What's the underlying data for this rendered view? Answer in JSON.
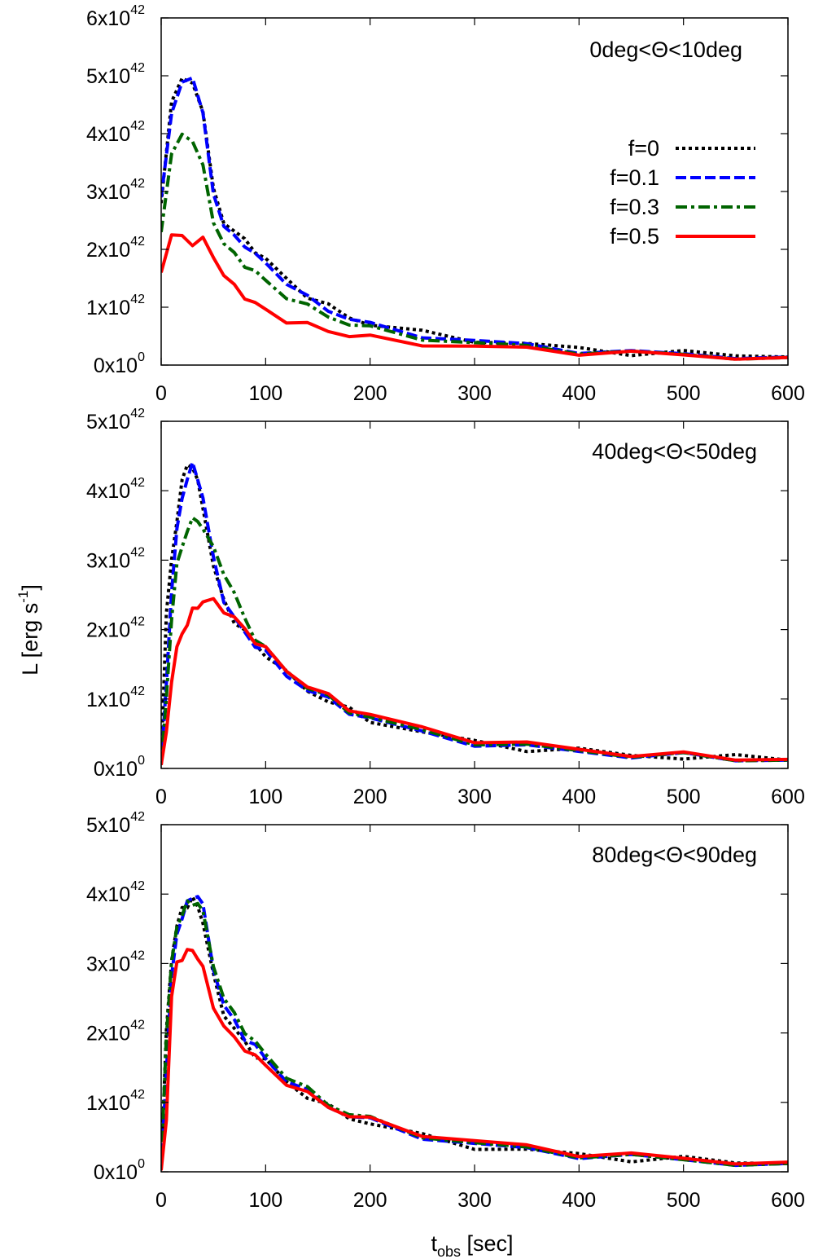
{
  "figure": {
    "ylabel": "L [erg s",
    "ylabel_sup": "-1",
    "ylabel_close": "]",
    "xlabel": "t",
    "xlabel_sub": "obs",
    "xlabel_rest": " [sec]"
  },
  "legend": {
    "entries": [
      {
        "label": "f=0",
        "color": "#000000",
        "style": "dotted"
      },
      {
        "label": "f=0.1",
        "color": "#0000ff",
        "style": "dashed"
      },
      {
        "label": "f=0.3",
        "color": "#006400",
        "style": "dashdot"
      },
      {
        "label": "f=0.5",
        "color": "#ff0000",
        "style": "solid"
      }
    ]
  },
  "chart_data": [
    {
      "type": "line",
      "annotation": "0deg<Θ<10deg",
      "xlim": [
        0,
        600
      ],
      "ylim": [
        0,
        6e+42
      ],
      "xticks": [
        "0",
        "100",
        "200",
        "300",
        "400",
        "500",
        "600"
      ],
      "yticks": [
        {
          "mantissa": "0x10",
          "exp": "0"
        },
        {
          "mantissa": "1x10",
          "exp": "42"
        },
        {
          "mantissa": "2x10",
          "exp": "42"
        },
        {
          "mantissa": "3x10",
          "exp": "42"
        },
        {
          "mantissa": "4x10",
          "exp": "42"
        },
        {
          "mantissa": "5x10",
          "exp": "42"
        },
        {
          "mantissa": "6x10",
          "exp": "42"
        }
      ],
      "series": [
        {
          "name": "f=0",
          "x": [
            0,
            10,
            20,
            30,
            40,
            50,
            60,
            70,
            80,
            90,
            100,
            120,
            140,
            160,
            180,
            200,
            250,
            300,
            350,
            400,
            450,
            500,
            550,
            600
          ],
          "values": [
            2.8e+42,
            4.6e+42,
            4.9e+42,
            4.9e+42,
            4.4e+42,
            3e+42,
            2.5e+42,
            2.3e+42,
            2.15e+42,
            2e+42,
            1.8e+42,
            1.5e+42,
            1.2e+42,
            1e+42,
            8.5e+41,
            7e+41,
            5.5e+41,
            4.5e+41,
            3.5e+41,
            2.8e+41,
            2.2e+41,
            2e+41,
            1.7e+41,
            1.4e+41
          ]
        },
        {
          "name": "f=0.1",
          "x": [
            0,
            10,
            20,
            30,
            40,
            50,
            60,
            70,
            80,
            90,
            100,
            120,
            140,
            160,
            180,
            200,
            250,
            300,
            350,
            400,
            450,
            500,
            550,
            600
          ],
          "values": [
            2.9e+42,
            4.3e+42,
            4.9e+42,
            5e+42,
            4.3e+42,
            3e+42,
            2.4e+42,
            2.2e+42,
            2.1e+42,
            1.9e+42,
            1.75e+42,
            1.45e+42,
            1.15e+42,
            9.5e+41,
            8.2e+41,
            6.8e+41,
            5.2e+41,
            4.2e+41,
            3.3e+41,
            2.6e+41,
            2.1e+41,
            1.9e+41,
            1.6e+41,
            1.4e+41
          ]
        },
        {
          "name": "f=0.3",
          "x": [
            0,
            10,
            20,
            30,
            40,
            50,
            60,
            70,
            80,
            90,
            100,
            120,
            140,
            160,
            180,
            200,
            250,
            300,
            350,
            400,
            450,
            500,
            550,
            600
          ],
          "values": [
            2.3e+42,
            3.6e+42,
            4e+42,
            3.9e+42,
            3.4e+42,
            2.5e+42,
            2.1e+42,
            1.9e+42,
            1.75e+42,
            1.6e+42,
            1.45e+42,
            1.2e+42,
            1e+42,
            8.5e+41,
            7.2e+41,
            6.2e+41,
            4.8e+41,
            3.8e+41,
            3e+41,
            2.5e+41,
            2e+41,
            1.8e+41,
            1.5e+41,
            1.3e+41
          ]
        },
        {
          "name": "f=0.5",
          "x": [
            0,
            10,
            20,
            30,
            40,
            50,
            60,
            70,
            80,
            90,
            100,
            120,
            140,
            160,
            180,
            200,
            250,
            300,
            350,
            400,
            450,
            500,
            550,
            600
          ],
          "values": [
            1.6e+42,
            2.2e+42,
            2.25e+42,
            2.1e+42,
            2.15e+42,
            1.9e+42,
            1.55e+42,
            1.35e+42,
            1.2e+42,
            1.05e+42,
            9.5e+41,
            7.8e+41,
            6.8e+41,
            6e+41,
            5.2e+41,
            4.6e+41,
            3.8e+41,
            3.2e+41,
            2.7e+41,
            2.3e+41,
            2e+41,
            1.7e+41,
            1.5e+41,
            1.3e+41
          ]
        }
      ]
    },
    {
      "type": "line",
      "annotation": "40deg<Θ<50deg",
      "xlim": [
        0,
        600
      ],
      "ylim": [
        0,
        5e+42
      ],
      "xticks": [
        "0",
        "100",
        "200",
        "300",
        "400",
        "500",
        "600"
      ],
      "yticks": [
        {
          "mantissa": "0x10",
          "exp": "0"
        },
        {
          "mantissa": "1x10",
          "exp": "42"
        },
        {
          "mantissa": "2x10",
          "exp": "42"
        },
        {
          "mantissa": "3x10",
          "exp": "42"
        },
        {
          "mantissa": "4x10",
          "exp": "42"
        },
        {
          "mantissa": "5x10",
          "exp": "42"
        }
      ],
      "series": [
        {
          "name": "f=0",
          "x": [
            0,
            5,
            10,
            15,
            20,
            25,
            30,
            35,
            40,
            50,
            60,
            70,
            80,
            90,
            100,
            120,
            140,
            160,
            180,
            200,
            250,
            300,
            350,
            400,
            450,
            500,
            550,
            600
          ],
          "values": [
            1e+41,
            2.2e+42,
            3e+42,
            3.6e+42,
            4.1e+42,
            4.4e+42,
            4.35e+42,
            4.1e+42,
            3.8e+42,
            2.9e+42,
            2.4e+42,
            2.15e+42,
            1.95e+42,
            1.8e+42,
            1.65e+42,
            1.35e+42,
            1.15e+42,
            9.7e+41,
            8.3e+41,
            7.2e+41,
            5e+41,
            3.8e+41,
            3e+41,
            2.4e+41,
            2e+41,
            1.7e+41,
            1.4e+41,
            1.2e+41
          ]
        },
        {
          "name": "f=0.1",
          "x": [
            0,
            5,
            10,
            15,
            20,
            25,
            30,
            35,
            40,
            50,
            60,
            70,
            80,
            90,
            100,
            120,
            140,
            160,
            180,
            200,
            250,
            300,
            350,
            400,
            450,
            500,
            550,
            600
          ],
          "values": [
            5e+40,
            1.2e+42,
            2.6e+42,
            3.4e+42,
            3.9e+42,
            4.2e+42,
            4.35e+42,
            4.2e+42,
            3.9e+42,
            3e+42,
            2.45e+42,
            2.15e+42,
            1.95e+42,
            1.8e+42,
            1.65e+42,
            1.35e+42,
            1.15e+42,
            9.7e+41,
            8.3e+41,
            7.2e+41,
            5e+41,
            3.8e+41,
            3e+41,
            2.4e+41,
            2e+41,
            1.7e+41,
            1.4e+41,
            1.2e+41
          ]
        },
        {
          "name": "f=0.3",
          "x": [
            0,
            5,
            10,
            15,
            20,
            25,
            30,
            35,
            40,
            50,
            60,
            70,
            80,
            90,
            100,
            120,
            140,
            160,
            180,
            200,
            250,
            300,
            350,
            400,
            450,
            500,
            550,
            600
          ],
          "values": [
            5e+40,
            1e+42,
            2.2e+42,
            2.9e+42,
            3.2e+42,
            3.45e+42,
            3.55e+42,
            3.6e+42,
            3.45e+42,
            3.15e+42,
            2.85e+42,
            2.5e+42,
            2.15e+42,
            1.9e+42,
            1.7e+42,
            1.42e+42,
            1.18e+42,
            1e+42,
            8.5e+41,
            7.3e+41,
            5.2e+41,
            4e+41,
            3.1e+41,
            2.5e+41,
            2.1e+41,
            1.7e+41,
            1.4e+41,
            1.2e+41
          ]
        },
        {
          "name": "f=0.5",
          "x": [
            0,
            5,
            10,
            15,
            20,
            25,
            30,
            35,
            40,
            50,
            60,
            70,
            80,
            90,
            100,
            120,
            140,
            160,
            180,
            200,
            250,
            300,
            350,
            400,
            450,
            500,
            550,
            600
          ],
          "values": [
            5e+40,
            5e+41,
            1.3e+42,
            1.7e+42,
            1.95e+42,
            2.1e+42,
            2.25e+42,
            2.35e+42,
            2.4e+42,
            2.4e+42,
            2.3e+42,
            2.15e+42,
            2e+42,
            1.85e+42,
            1.7e+42,
            1.42e+42,
            1.2e+42,
            1.02e+42,
            8.8e+41,
            7.7e+41,
            5.6e+41,
            4.3e+41,
            3.4e+41,
            2.7e+41,
            2.2e+41,
            1.8e+41,
            1.5e+41,
            1.3e+41
          ]
        }
      ]
    },
    {
      "type": "line",
      "annotation": "80deg<Θ<90deg",
      "xlim": [
        0,
        600
      ],
      "ylim": [
        0,
        5e+42
      ],
      "xticks": [
        "0",
        "100",
        "200",
        "300",
        "400",
        "500",
        "600"
      ],
      "yticks": [
        {
          "mantissa": "0x10",
          "exp": "0"
        },
        {
          "mantissa": "1x10",
          "exp": "42"
        },
        {
          "mantissa": "2x10",
          "exp": "42"
        },
        {
          "mantissa": "3x10",
          "exp": "42"
        },
        {
          "mantissa": "4x10",
          "exp": "42"
        },
        {
          "mantissa": "5x10",
          "exp": "42"
        }
      ],
      "series": [
        {
          "name": "f=0",
          "x": [
            0,
            5,
            10,
            15,
            20,
            25,
            30,
            35,
            40,
            50,
            60,
            70,
            80,
            90,
            100,
            120,
            140,
            160,
            180,
            200,
            250,
            300,
            350,
            400,
            450,
            500,
            550,
            600
          ],
          "values": [
            5e+40,
            2e+42,
            3.1e+42,
            3.5e+42,
            3.8e+42,
            3.85e+42,
            3.9e+42,
            3.85e+42,
            3.6e+42,
            2.8e+42,
            2.3e+42,
            2.05e+42,
            1.85e+42,
            1.7e+42,
            1.58e+42,
            1.3e+42,
            1.1e+42,
            9.2e+41,
            8e+41,
            7e+41,
            5e+41,
            3.8e+41,
            3e+41,
            2.4e+41,
            2e+41,
            1.7e+41,
            1.4e+41,
            1.2e+41
          ]
        },
        {
          "name": "f=0.1",
          "x": [
            0,
            5,
            10,
            15,
            20,
            25,
            30,
            35,
            40,
            50,
            60,
            70,
            80,
            90,
            100,
            120,
            140,
            160,
            180,
            200,
            250,
            300,
            350,
            400,
            450,
            500,
            550,
            600
          ],
          "values": [
            5e+40,
            1.5e+42,
            2.8e+42,
            3.4e+42,
            3.7e+42,
            3.85e+42,
            3.95e+42,
            4e+42,
            3.8e+42,
            2.95e+42,
            2.4e+42,
            2.15e+42,
            1.95e+42,
            1.8e+42,
            1.62e+42,
            1.35e+42,
            1.13e+42,
            9.5e+41,
            8.2e+41,
            7.2e+41,
            5.2e+41,
            4e+41,
            3.1e+41,
            2.5e+41,
            2.1e+41,
            1.7e+41,
            1.4e+41,
            1.2e+41
          ]
        },
        {
          "name": "f=0.3",
          "x": [
            0,
            5,
            10,
            15,
            20,
            25,
            30,
            35,
            40,
            50,
            60,
            70,
            80,
            90,
            100,
            120,
            140,
            160,
            180,
            200,
            250,
            300,
            350,
            400,
            450,
            500,
            550,
            600
          ],
          "values": [
            1e+41,
            2e+42,
            3e+42,
            3.5e+42,
            3.75e+42,
            3.85e+42,
            3.85e+42,
            3.9e+42,
            3.7e+42,
            3e+42,
            2.5e+42,
            2.25e+42,
            2.05e+42,
            1.85e+42,
            1.68e+42,
            1.4e+42,
            1.17e+42,
            9.8e+41,
            8.5e+41,
            7.4e+41,
            5.4e+41,
            4.1e+41,
            3.2e+41,
            2.6e+41,
            2.1e+41,
            1.7e+41,
            1.4e+41,
            1.2e+41
          ]
        },
        {
          "name": "f=0.5",
          "x": [
            0,
            5,
            10,
            15,
            20,
            25,
            30,
            35,
            40,
            50,
            60,
            70,
            80,
            90,
            100,
            120,
            140,
            160,
            180,
            200,
            250,
            300,
            350,
            400,
            450,
            500,
            550,
            600
          ],
          "values": [
            2e+40,
            8e+41,
            2.5e+42,
            3e+42,
            3.1e+42,
            3.15e+42,
            3.2e+42,
            3.1e+42,
            2.9e+42,
            2.4e+42,
            2.1e+42,
            1.9e+42,
            1.8e+42,
            1.65e+42,
            1.52e+42,
            1.3e+42,
            1.1e+42,
            9.5e+41,
            8.2e+41,
            7.3e+41,
            5.6e+41,
            4.4e+41,
            3.5e+41,
            2.8e+41,
            2.3e+41,
            1.9e+41,
            1.6e+41,
            1.4e+41
          ]
        }
      ]
    }
  ]
}
